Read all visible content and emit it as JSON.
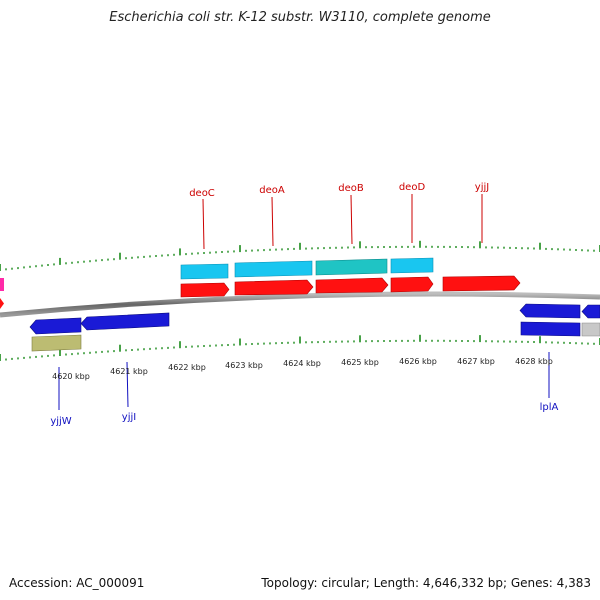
{
  "title": "Escherichia coli str. K-12 substr. W3110, complete genome",
  "accession": "Accession: AC_000091",
  "summary": "Topology: circular; Length: 4,646,332 bp; Genes: 4,383",
  "ticks": [
    {
      "label": "4620 kbp"
    },
    {
      "label": "4621 kbp"
    },
    {
      "label": "4622 kbp"
    },
    {
      "label": "4623 kbp"
    },
    {
      "label": "4624 kbp"
    },
    {
      "label": "4625 kbp"
    },
    {
      "label": "4626 kbp"
    },
    {
      "label": "4627 kbp"
    },
    {
      "label": "4628 kbp"
    }
  ],
  "gene_labels": {
    "top": [
      "deoC",
      "deoA",
      "deoB",
      "deoD",
      "yjjJ"
    ],
    "bottom": [
      "yjjW",
      "yjjI",
      "lplA"
    ]
  },
  "colors": {
    "forward_gene": "#ff1111",
    "reverse_gene": "#1a1ad6",
    "forward_cds": "#19c6f0",
    "teal_cds": "#1fc4c4",
    "olive": "#bcbc72",
    "grey": "#c8c8c8",
    "magenta": "#ff2aa8",
    "top_label": "#cc0000",
    "bottom_label": "#1010c0",
    "tick": "#1a8a1a",
    "backbone": "#777777"
  }
}
